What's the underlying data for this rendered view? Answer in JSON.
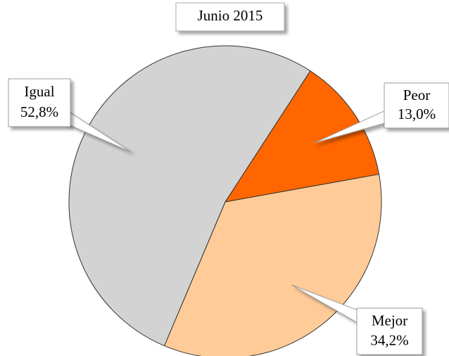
{
  "chart_data": {
    "type": "pie",
    "title": "Junio 2015",
    "categories": [
      "Peor",
      "Mejor",
      "Igual"
    ],
    "values": [
      13.0,
      34.2,
      52.8
    ],
    "value_labels": [
      "13,0%",
      "34,2%",
      "52,8%"
    ],
    "colors": [
      "#ff6600",
      "#ffcc99",
      "#d3d3d3"
    ]
  }
}
